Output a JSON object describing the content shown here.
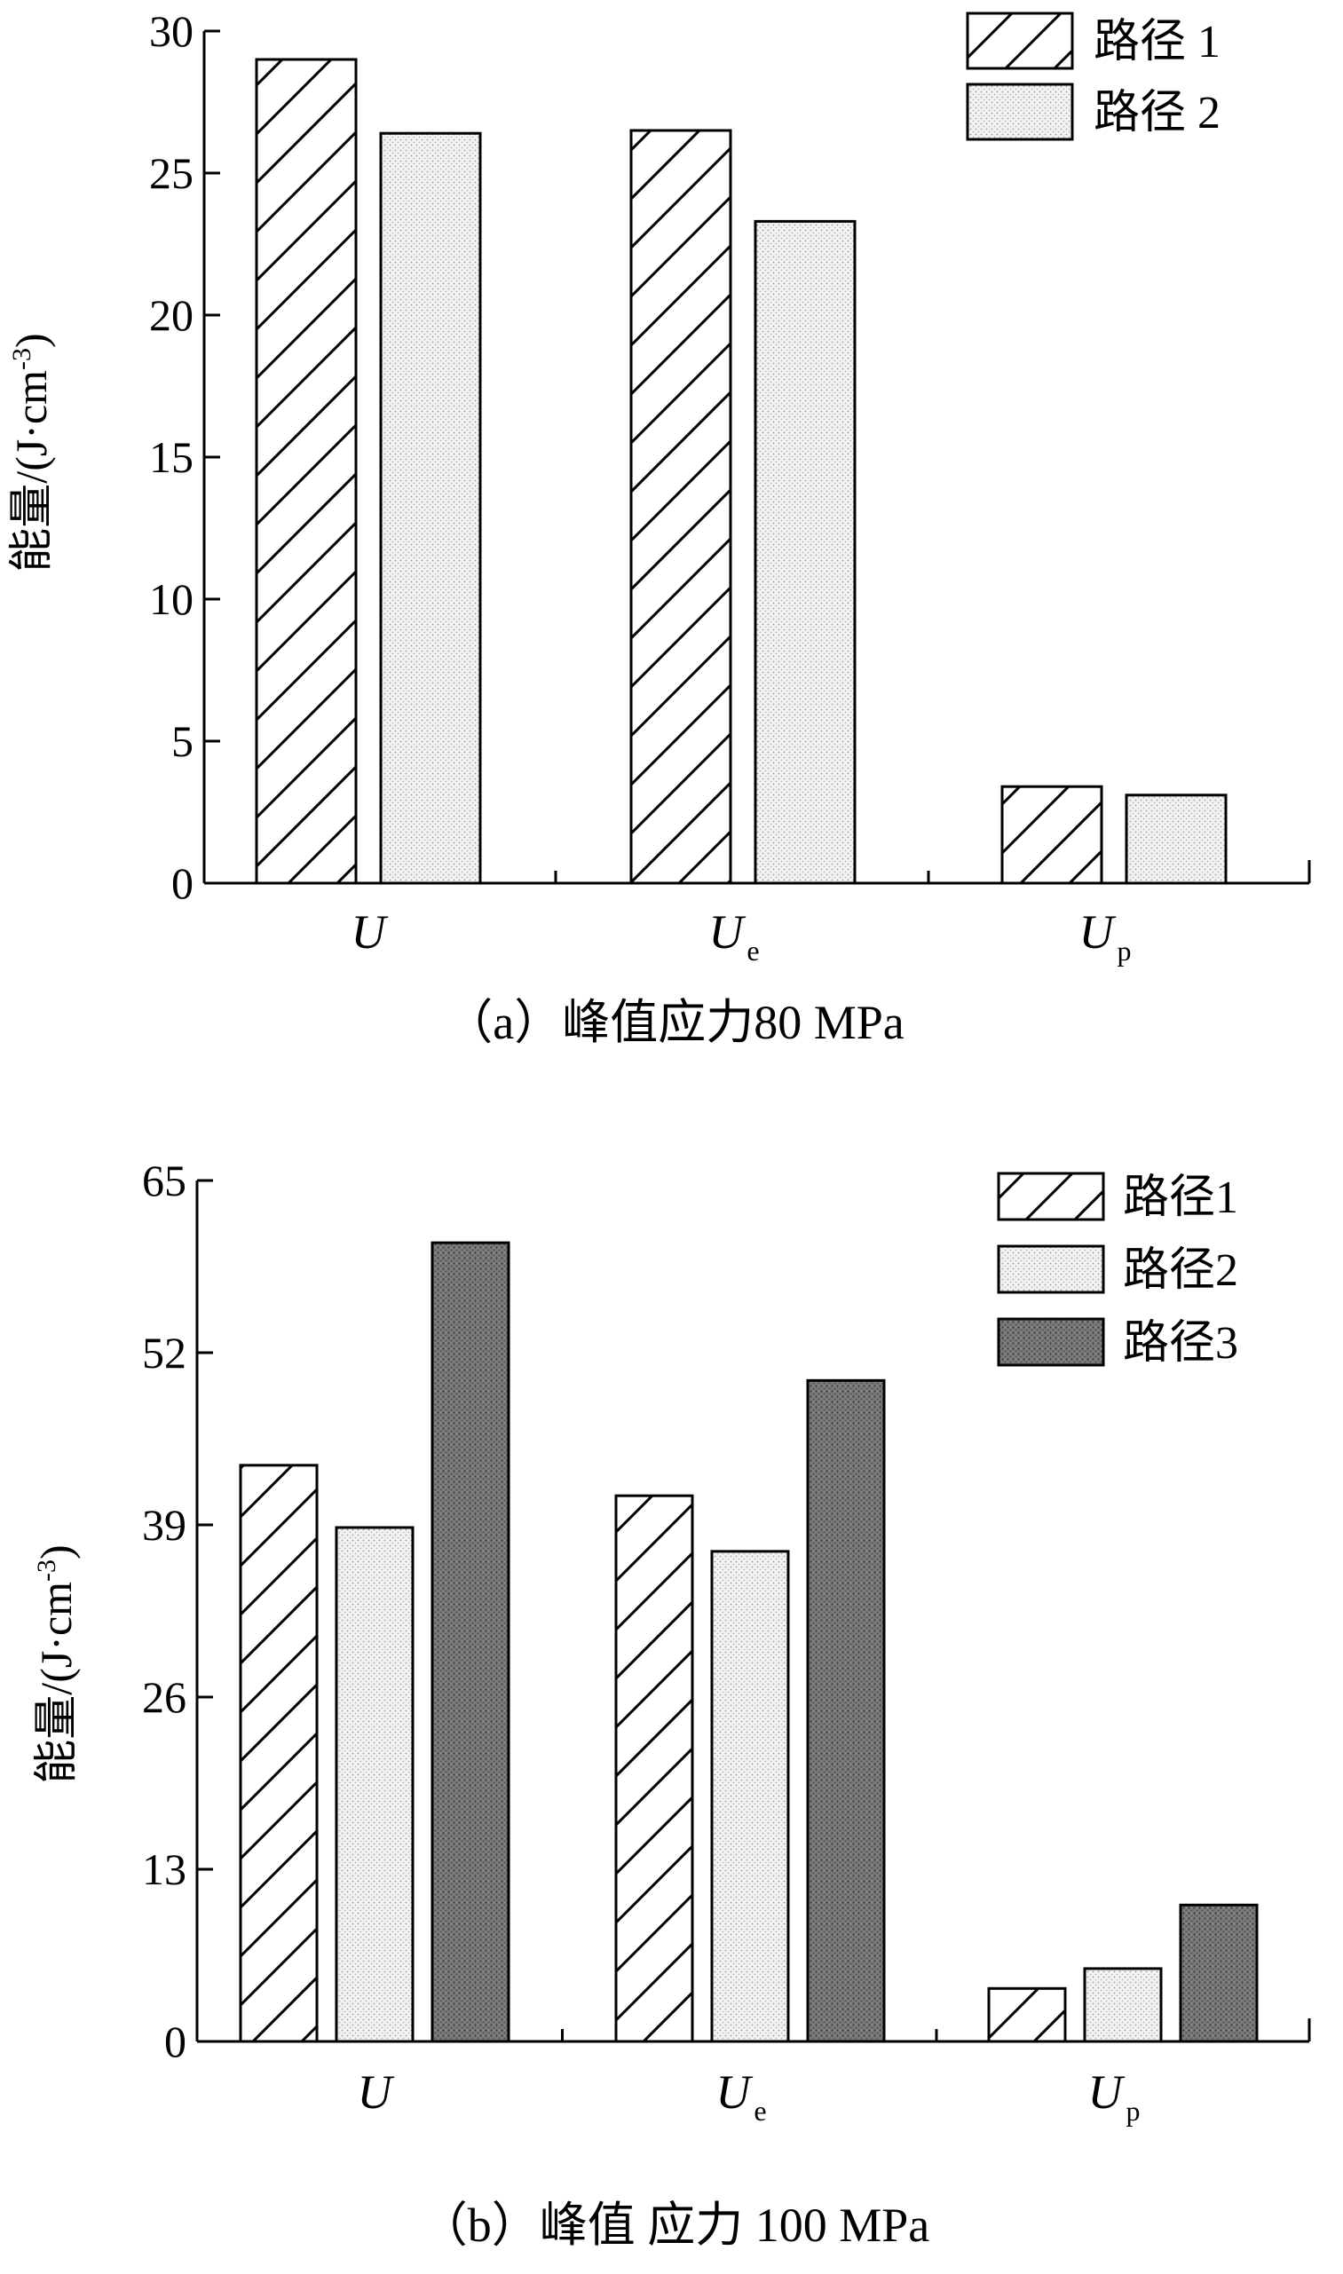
{
  "chart_data": [
    {
      "type": "bar",
      "title": "（a）峰值应力80 MPa",
      "ylabel": "能量/(J·cm-3)",
      "ylabel_parts": {
        "main": "能量/(J·cm",
        "sup": "-3",
        "close": ")"
      },
      "categories": [
        {
          "main": "U",
          "sub": ""
        },
        {
          "main": "U",
          "sub": "e"
        },
        {
          "main": "U",
          "sub": "p"
        }
      ],
      "ylim": [
        0,
        30
      ],
      "yticks": [
        0,
        5,
        10,
        15,
        20,
        25,
        30
      ],
      "legend": "top-right",
      "grid": false,
      "series": [
        {
          "name": "路径 1",
          "pattern": "hatch",
          "values": [
            29.0,
            26.5,
            3.4
          ]
        },
        {
          "name": "路径 2",
          "pattern": "dots",
          "values": [
            26.4,
            23.3,
            3.1
          ]
        }
      ]
    },
    {
      "type": "bar",
      "title": "（b）峰值 应力 100 MPa",
      "ylabel": "能量/(J·cm-3)",
      "ylabel_parts": {
        "main": "能量/(J·cm",
        "sup": "-3",
        "close": ")"
      },
      "categories": [
        {
          "main": "U",
          "sub": ""
        },
        {
          "main": "U",
          "sub": "e"
        },
        {
          "main": "U",
          "sub": "p"
        }
      ],
      "ylim": [
        0,
        65
      ],
      "yticks": [
        0,
        13,
        26,
        39,
        52,
        65
      ],
      "legend": "top-right",
      "grid": false,
      "series": [
        {
          "name": "路径1",
          "pattern": "hatch",
          "values": [
            43.5,
            41.2,
            4.0
          ]
        },
        {
          "name": "路径2",
          "pattern": "dots",
          "values": [
            38.8,
            37.0,
            5.5
          ]
        },
        {
          "name": "路径3",
          "pattern": "dark",
          "values": [
            60.3,
            49.9,
            10.3
          ]
        }
      ]
    }
  ]
}
